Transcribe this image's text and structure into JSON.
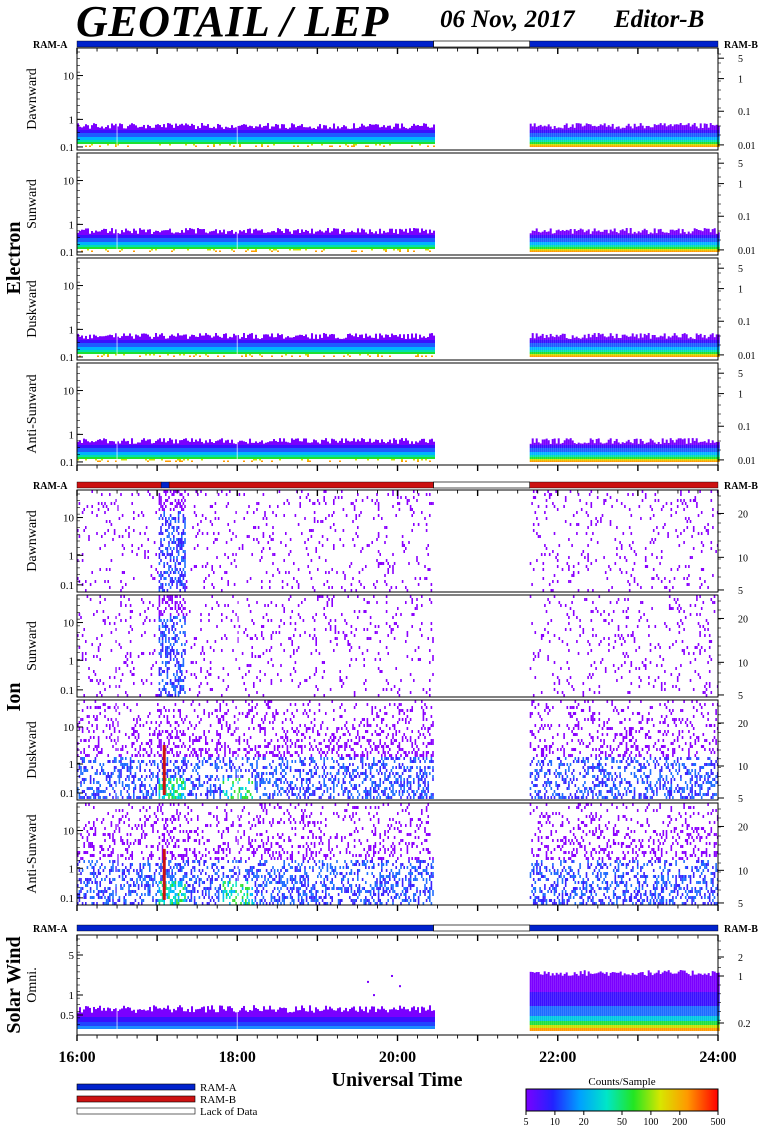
{
  "header": {
    "title": "GEOTAIL / LEP",
    "date": "06 Nov, 2017",
    "editor": "Editor-B"
  },
  "colors": {
    "ram_a": "#0022cc",
    "ram_b": "#cc1111",
    "lack_of_data": "#ffffff",
    "background": "#ffffff"
  },
  "chart_data": {
    "type": "heatmap",
    "xlabel": "Universal Time",
    "x_ticks": [
      "16:00",
      "18:00",
      "20:00",
      "22:00",
      "24:00"
    ],
    "x_range_hours": [
      16,
      24
    ],
    "data_gap_hours": [
      20.45,
      21.65
    ],
    "groups": [
      {
        "name": "Electron",
        "ram_bar": [
          {
            "label": "RAM-A",
            "from": 16.0,
            "to": 20.45
          },
          {
            "label": "Lack of Data",
            "from": 20.45,
            "to": 21.65
          },
          {
            "label": "RAM-A",
            "from": 21.65,
            "to": 24.0
          }
        ],
        "ram_left": "RAM-A",
        "ram_right": "RAM-B",
        "panels": [
          {
            "label": "Dawnward",
            "left_ticks": [
              "10",
              "1",
              "0.1"
            ],
            "right_ticks": [
              "5",
              "1",
              "0.1",
              "0.01"
            ]
          },
          {
            "label": "Sunward",
            "left_ticks": [
              "10",
              "1",
              "0.1"
            ],
            "right_ticks": [
              "5",
              "1",
              "0.1",
              "0.01"
            ]
          },
          {
            "label": "Duskward",
            "left_ticks": [
              "10",
              "1",
              "0.1"
            ],
            "right_ticks": [
              "5",
              "1",
              "0.1",
              "0.01"
            ]
          },
          {
            "label": "Anti-Sunward",
            "left_ticks": [
              "10",
              "1",
              "0.1"
            ],
            "right_ticks": [
              "5",
              "1",
              "0.1",
              "0.01"
            ]
          }
        ]
      },
      {
        "name": "Ion",
        "ram_bar": [
          {
            "label": "RAM-B",
            "from": 16.0,
            "to": 17.05
          },
          {
            "label": "RAM-A",
            "from": 17.05,
            "to": 17.15
          },
          {
            "label": "RAM-B",
            "from": 17.15,
            "to": 20.45
          },
          {
            "label": "Lack of Data",
            "from": 20.45,
            "to": 21.65
          },
          {
            "label": "RAM-B",
            "from": 21.65,
            "to": 24.0
          }
        ],
        "ram_left": "RAM-A",
        "ram_right": "RAM-B",
        "panels": [
          {
            "label": "Dawnward",
            "left_ticks": [
              "10",
              "1",
              "0.1"
            ],
            "right_ticks": [
              "20",
              "10",
              "5"
            ]
          },
          {
            "label": "Sunward",
            "left_ticks": [
              "10",
              "1",
              "0.1"
            ],
            "right_ticks": [
              "20",
              "10",
              "5"
            ]
          },
          {
            "label": "Duskward",
            "left_ticks": [
              "10",
              "1",
              "0.1"
            ],
            "right_ticks": [
              "20",
              "10",
              "5"
            ]
          },
          {
            "label": "Anti-Sunward",
            "left_ticks": [
              "10",
              "1",
              "0.1"
            ],
            "right_ticks": [
              "20",
              "10",
              "5"
            ]
          }
        ]
      },
      {
        "name": "Solar Wind",
        "ram_bar": [
          {
            "label": "RAM-A",
            "from": 16.0,
            "to": 20.45
          },
          {
            "label": "Lack of Data",
            "from": 20.45,
            "to": 21.65
          },
          {
            "label": "RAM-A",
            "from": 21.65,
            "to": 24.0
          }
        ],
        "ram_left": "RAM-A",
        "ram_right": "RAM-B",
        "panels": [
          {
            "label": "Omni.",
            "left_ticks": [
              "5",
              "1",
              "0.5"
            ],
            "right_ticks": [
              "2",
              "1",
              "0.2"
            ]
          }
        ]
      }
    ],
    "legend": {
      "entries": [
        "RAM-A",
        "RAM-B",
        "Lack of Data"
      ],
      "colorbar_title": "Counts/Sample",
      "colorbar_ticks": [
        "5",
        "10",
        "20",
        "50",
        "100",
        "200",
        "500"
      ],
      "colorbar_range": [
        5,
        500
      ],
      "colorbar_scale": "log"
    }
  }
}
